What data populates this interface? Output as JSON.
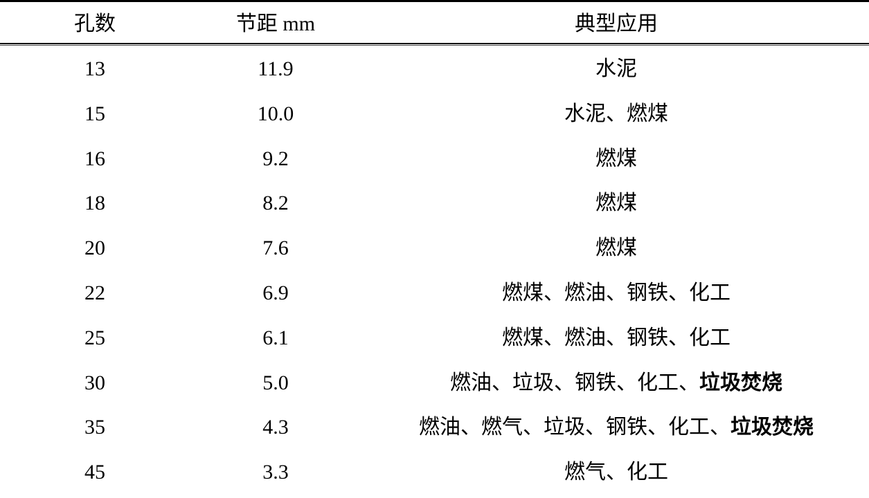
{
  "table": {
    "headers": [
      "孔数",
      "节距 mm",
      "典型应用"
    ],
    "rows": [
      {
        "holes": "13",
        "pitch": "11.9",
        "application": "水泥",
        "application_bold": ""
      },
      {
        "holes": "15",
        "pitch": "10.0",
        "application": "水泥、燃煤",
        "application_bold": ""
      },
      {
        "holes": "16",
        "pitch": "9.2",
        "application": "燃煤",
        "application_bold": ""
      },
      {
        "holes": "18",
        "pitch": "8.2",
        "application": "燃煤",
        "application_bold": ""
      },
      {
        "holes": "20",
        "pitch": "7.6",
        "application": "燃煤",
        "application_bold": ""
      },
      {
        "holes": "22",
        "pitch": "6.9",
        "application": "燃煤、燃油、钢铁、化工",
        "application_bold": ""
      },
      {
        "holes": "25",
        "pitch": "6.1",
        "application": "燃煤、燃油、钢铁、化工",
        "application_bold": ""
      },
      {
        "holes": "30",
        "pitch": "5.0",
        "application": "燃油、垃圾、钢铁、化工、",
        "application_bold": "垃圾焚烧"
      },
      {
        "holes": "35",
        "pitch": "4.3",
        "application": "燃油、燃气、垃圾、钢铁、化工、",
        "application_bold": "垃圾焚烧"
      },
      {
        "holes": "45",
        "pitch": "3.3",
        "application": "燃气、化工",
        "application_bold": ""
      }
    ]
  }
}
